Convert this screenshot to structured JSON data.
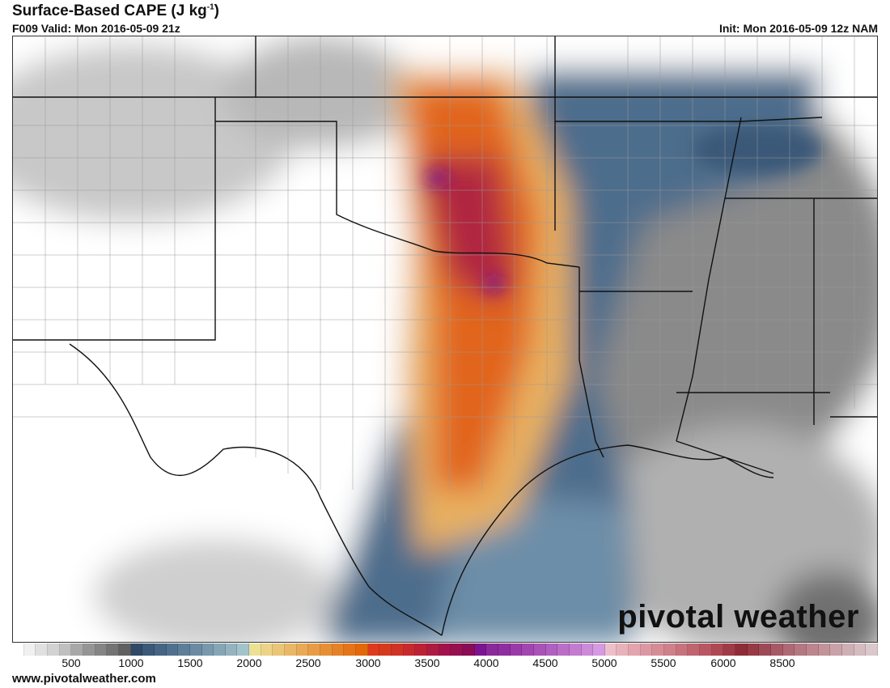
{
  "header": {
    "title": "Surface-Based CAPE (J kg",
    "title_sup": "-1",
    "title_end": ")",
    "valid": "F009 Valid: Mon 2016-05-09 21z",
    "init": "Init: Mon 2016-05-09 12z NAM"
  },
  "logo": "pivotal weather",
  "footer": {
    "site": "www.pivotalweather.com"
  },
  "colorbar": {
    "labels": [
      "500",
      "1000",
      "1500",
      "2000",
      "2500",
      "3000",
      "3500",
      "4000",
      "4500",
      "5000",
      "5500",
      "6000",
      "8500"
    ],
    "colors": [
      "#ffffff",
      "#f0f0f0",
      "#e0e0e0",
      "#d2d2d2",
      "#c0c0c0",
      "#a8a8a8",
      "#959595",
      "#858585",
      "#747474",
      "#606060",
      "#2f4a66",
      "#3a5878",
      "#456584",
      "#50718e",
      "#5c7e98",
      "#6a8ba2",
      "#7899ac",
      "#86a6b6",
      "#95b3bf",
      "#a3c3cc",
      "#ece094",
      "#ecd386",
      "#ebc577",
      "#eab766",
      "#e9a955",
      "#e89c45",
      "#e78f35",
      "#e68226",
      "#e47418",
      "#e2680b",
      "#de3a1e",
      "#d63a1e",
      "#d13226",
      "#c72a2e",
      "#bc2236",
      "#ad1a42",
      "#a2124c",
      "#961050",
      "#8a0c56",
      "#7b1490",
      "#8a2a9a",
      "#8f2ea0",
      "#9a3aa8",
      "#a346b0",
      "#ab52b6",
      "#b060c0",
      "#bb6ec8",
      "#c47cd0",
      "#cc8ad8",
      "#d59ae2",
      "#ecc0c8",
      "#e8b2ba",
      "#e2a4ae",
      "#dc98a2",
      "#d68c96",
      "#cf808a",
      "#c8727e",
      "#c06470",
      "#b85662",
      "#b04854",
      "#a03a46",
      "#8e2c38",
      "#963a46",
      "#9e4a56",
      "#a65a66",
      "#ad6a74",
      "#b47880",
      "#bc868e",
      "#c2949a",
      "#c8a2a8",
      "#ceb0b4",
      "#d4bcc0",
      "#dac8cc"
    ]
  }
}
